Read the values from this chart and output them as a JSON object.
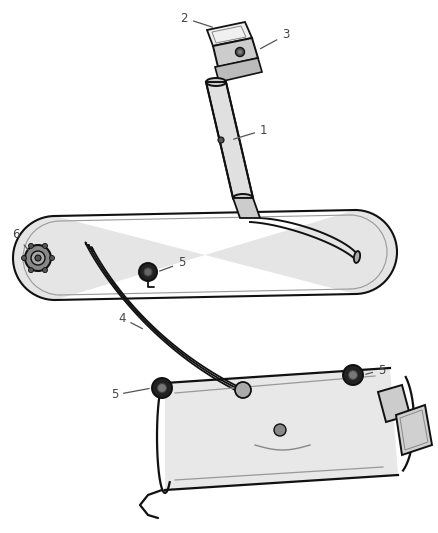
{
  "bg_color": "#ffffff",
  "line_color": "#333333",
  "dark_color": "#111111",
  "gray_fill": "#e8e8e8",
  "light_gray": "#f0f0f0",
  "label_color": "#444444",
  "figsize": [
    4.38,
    5.33
  ],
  "dpi": 100,
  "label_fontsize": 8.5
}
